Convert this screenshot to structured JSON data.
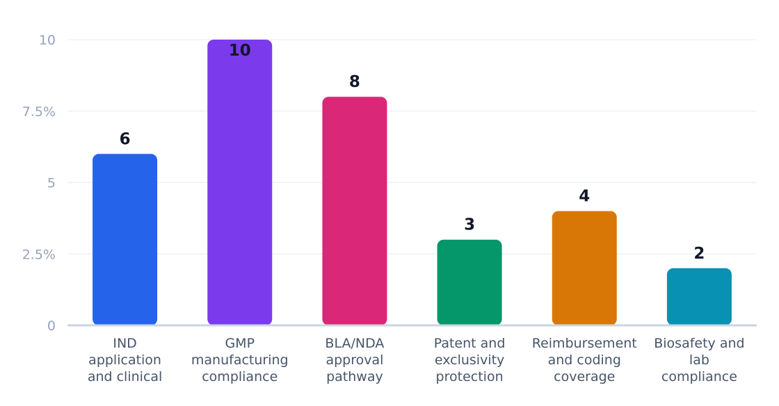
{
  "chart_data": {
    "type": "bar",
    "title": "",
    "xlabel": "",
    "ylabel": "",
    "ylim": [
      0,
      10
    ],
    "grid": true,
    "legend": "none",
    "y_ticks": [
      {
        "value": 0,
        "label": "0"
      },
      {
        "value": 2.5,
        "label": "2.5%"
      },
      {
        "value": 5,
        "label": "5"
      },
      {
        "value": 7.5,
        "label": "7.5%"
      },
      {
        "value": 10,
        "label": "10"
      }
    ],
    "categories": [
      [
        "IND",
        "application",
        "and clinical"
      ],
      [
        "GMP",
        "manufacturing",
        "compliance"
      ],
      [
        "BLA/NDA",
        "approval",
        "pathway"
      ],
      [
        "Patent and",
        "exclusivity",
        "protection"
      ],
      [
        "Reimbursement",
        "and coding",
        "coverage"
      ],
      [
        "Biosafety and",
        "lab",
        "compliance"
      ]
    ],
    "values": [
      6,
      10,
      8,
      3,
      4,
      2
    ],
    "data_labels": [
      "6",
      "10",
      "8",
      "3",
      "4",
      "2"
    ],
    "colors": [
      "#2563eb",
      "#7c3aed",
      "#db2777",
      "#059669",
      "#d97706",
      "#0891b2"
    ]
  }
}
